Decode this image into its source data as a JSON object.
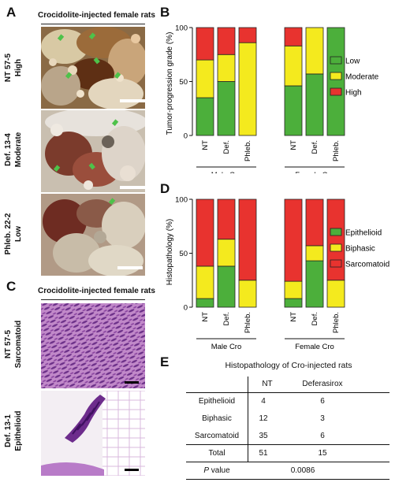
{
  "panels": {
    "A": "A",
    "B": "B",
    "C": "C",
    "D": "D",
    "E": "E"
  },
  "panelA": {
    "title": "Crocidolite-injected female rats",
    "rows": [
      {
        "id": "NT 57-5",
        "grade": "High"
      },
      {
        "id": "Def. 13-4",
        "grade": "Moderate"
      },
      {
        "id": "Phleb. 22-2",
        "grade": "Low"
      }
    ]
  },
  "panelC": {
    "title": "Crocidolite-injected female rats",
    "rows": [
      {
        "id": "NT 57-5",
        "type": "Sarcomatoid"
      },
      {
        "id": "Def. 13-1",
        "type": "Epithelioid"
      }
    ]
  },
  "chart_data": [
    {
      "type": "bar",
      "panel": "B",
      "stacked": true,
      "ylabel": "Tumor-progression grade (%)",
      "ylim": [
        0,
        100
      ],
      "yticks": [
        0,
        50,
        100
      ],
      "groups": [
        {
          "name": "Male Cro",
          "categories": [
            "NT",
            "Def.",
            "Phleb."
          ]
        },
        {
          "name": "Female Cro",
          "categories": [
            "NT",
            "Def.",
            "Phleb."
          ]
        }
      ],
      "series": [
        {
          "name": "Low",
          "color": "#4caf3b",
          "values": [
            35,
            50,
            0,
            46,
            57,
            100
          ]
        },
        {
          "name": "Moderate",
          "color": "#f4ea1e",
          "values": [
            35,
            25,
            86,
            37,
            43,
            0
          ]
        },
        {
          "name": "High",
          "color": "#e8332f",
          "values": [
            30,
            25,
            14,
            17,
            0,
            0
          ]
        }
      ],
      "legend_position": "right"
    },
    {
      "type": "bar",
      "panel": "D",
      "stacked": true,
      "ylabel": "Histopathology (%)",
      "ylim": [
        0,
        100
      ],
      "yticks": [
        0,
        50,
        100
      ],
      "groups": [
        {
          "name": "Male Cro",
          "categories": [
            "NT",
            "Def.",
            "Phleb."
          ]
        },
        {
          "name": "Female Cro",
          "categories": [
            "NT",
            "Def.",
            "Phleb."
          ]
        }
      ],
      "series": [
        {
          "name": "Epithelioid",
          "color": "#4caf3b",
          "values": [
            8,
            38,
            0,
            8,
            43,
            0
          ]
        },
        {
          "name": "Biphasic",
          "color": "#f4ea1e",
          "values": [
            30,
            25,
            25,
            16,
            14,
            25
          ]
        },
        {
          "name": "Sarcomatoid",
          "color": "#e8332f",
          "values": [
            62,
            37,
            75,
            76,
            43,
            75
          ]
        }
      ],
      "legend_position": "right"
    }
  ],
  "tableE": {
    "title": "Histopathology of Cro-injected rats",
    "columns": [
      "",
      "NT",
      "Deferasirox"
    ],
    "rows": [
      [
        "Epithelioid",
        "4",
        "6"
      ],
      [
        "Biphasic",
        "12",
        "3"
      ],
      [
        "Sarcomatoid",
        "35",
        "6"
      ],
      [
        "Total",
        "51",
        "15"
      ]
    ],
    "pvalue_label_italic": "P",
    "pvalue_label_rest": " value",
    "pvalue": "0.0086"
  }
}
